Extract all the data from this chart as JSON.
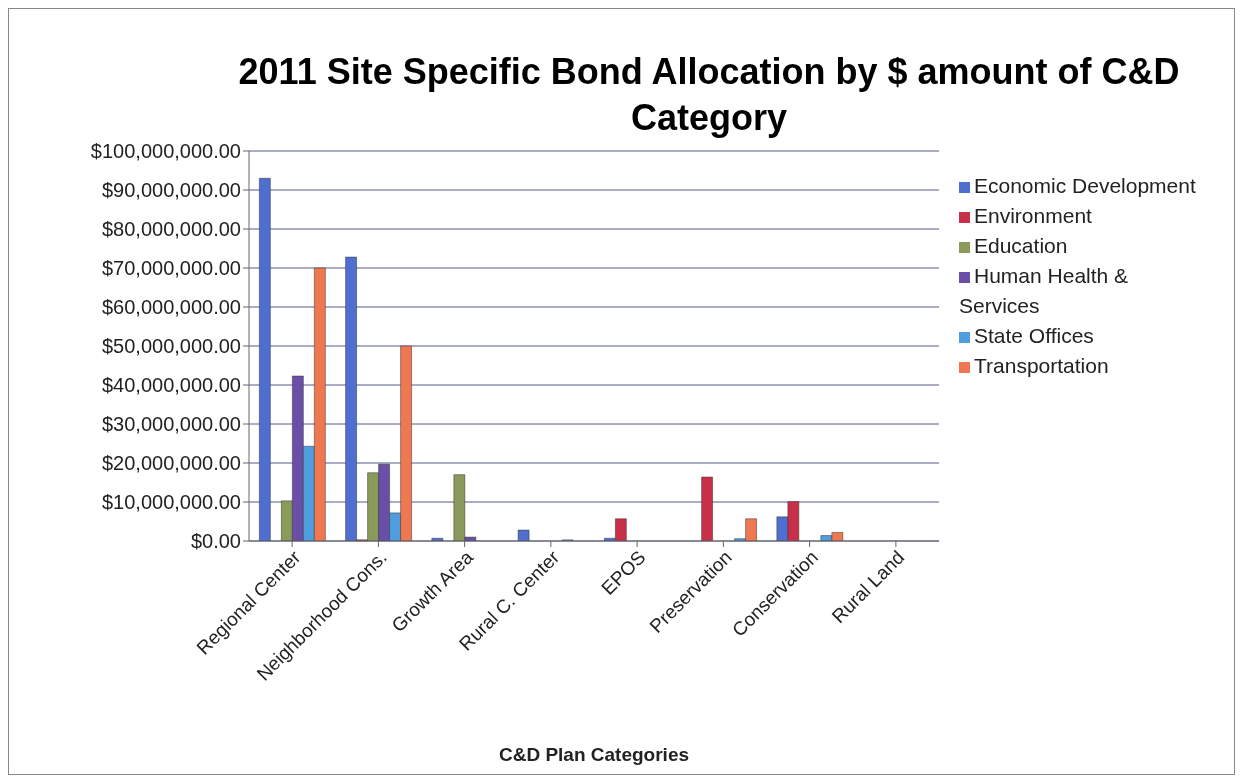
{
  "chart_data": {
    "type": "bar",
    "title": "2011 Site Specific Bond Allocation by $ amount of C&D Category",
    "xlabel": "C&D Plan Categories",
    "categories": [
      "Regional Center",
      "Neighborhood Cons.",
      "Growth Area",
      "Rural C. Center",
      "EPOS",
      "Preservation",
      "Conservation",
      "Rural Land"
    ],
    "series": [
      {
        "name": "Economic Development",
        "color": "#4f6fd0",
        "values": [
          93000000,
          72800000,
          700000,
          2800000,
          700000,
          0,
          6200000,
          0
        ]
      },
      {
        "name": "Environment",
        "color": "#c8304a",
        "values": [
          0,
          300000,
          null,
          0,
          5700000,
          16400000,
          10100000,
          0
        ]
      },
      {
        "name": "Education",
        "color": "#8a9a5b",
        "values": [
          10300000,
          17500000,
          17000000,
          0,
          0,
          0,
          0,
          0
        ]
      },
      {
        "name": "Human Health & Services",
        "color": "#6a4fa8",
        "values": [
          42300000,
          19700000,
          1000000,
          0,
          0,
          0,
          0,
          0
        ]
      },
      {
        "name": "State Offices",
        "color": "#4f9ee0",
        "values": [
          24300000,
          7200000,
          0,
          300000,
          0,
          600000,
          1400000,
          0
        ]
      },
      {
        "name": "Transportation",
        "color": "#f07850",
        "values": [
          70000000,
          50000000,
          0,
          0,
          0,
          5700000,
          2200000,
          0
        ]
      }
    ],
    "ylim": [
      0,
      100000000
    ],
    "yticks": [
      {
        "value": 0,
        "label": "$0.00"
      },
      {
        "value": 10000000,
        "label": "$10,000,000.00"
      },
      {
        "value": 20000000,
        "label": "$20,000,000.00"
      },
      {
        "value": 30000000,
        "label": "$30,000,000.00"
      },
      {
        "value": 40000000,
        "label": "$40,000,000.00"
      },
      {
        "value": 50000000,
        "label": "$50,000,000.00"
      },
      {
        "value": 60000000,
        "label": "$60,000,000.00"
      },
      {
        "value": 70000000,
        "label": "$70,000,000.00"
      },
      {
        "value": 80000000,
        "label": "$80,000,000.00"
      },
      {
        "value": 90000000,
        "label": "$90,000,000.00"
      },
      {
        "value": 100000000,
        "label": "$100,000,000.00"
      }
    ],
    "grid": "y",
    "legend": "right"
  }
}
